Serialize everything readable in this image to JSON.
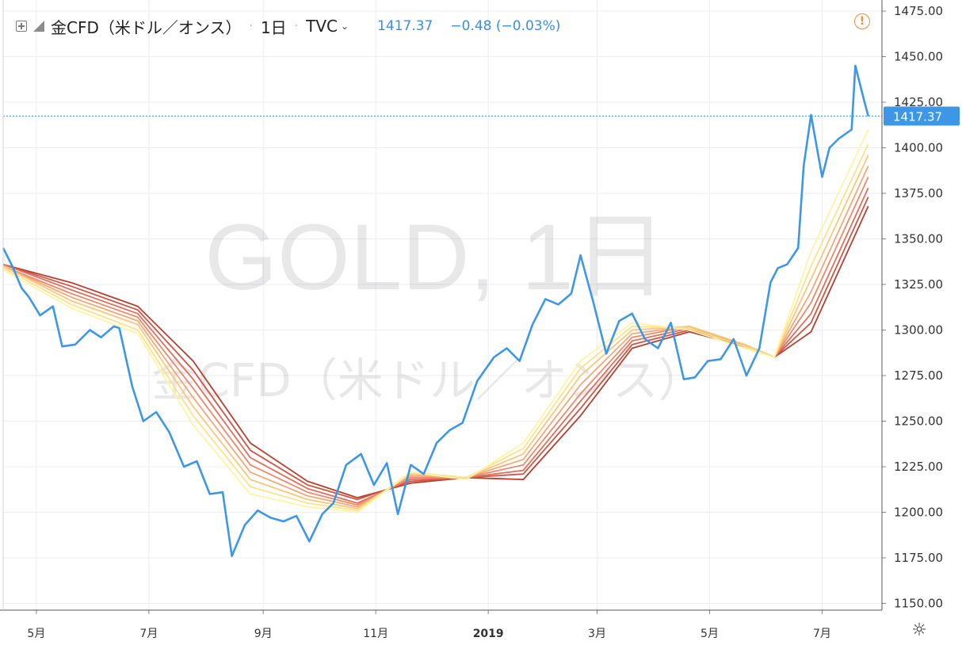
{
  "header": {
    "symbol_name": "金CFD（米ドル／オンス）",
    "interval": "1日",
    "source": "TVC",
    "last_price": "1417.37",
    "change": "−0.48 (−0.03%)"
  },
  "watermark": {
    "line1": "GOLD, 1日",
    "line2": "金CFD（米ドル／オンス）"
  },
  "icons": {
    "expand": "expand-square-icon",
    "symbol": "symbol-square-icon",
    "chevron": "chevron-down-icon",
    "warning": "warning-circle-icon",
    "settings": "gear-icon"
  },
  "colors": {
    "price_line": "#3e97e6",
    "price_label_bg": "#3e97e6",
    "ribbon": [
      "#fff3a6",
      "#fce28a",
      "#f8c77a",
      "#f3a878",
      "#ec8a6c",
      "#e06f5b",
      "#cf5647",
      "#b5402f"
    ]
  },
  "chart_data": {
    "type": "line",
    "title": "",
    "ylim": [
      1150,
      1475
    ],
    "xlim": [
      "2018-04-13",
      "2019-07-27"
    ],
    "y_ticks": [
      "1475.00",
      "1450.00",
      "1425.00",
      "1400.00",
      "1375.00",
      "1350.00",
      "1325.00",
      "1300.00",
      "1275.00",
      "1250.00",
      "1225.00",
      "1200.00",
      "1175.00",
      "1150.00"
    ],
    "x_ticks": [
      {
        "label": "5月",
        "x": "2018-05-01"
      },
      {
        "label": "7月",
        "x": "2018-07-01"
      },
      {
        "label": "9月",
        "x": "2018-09-01"
      },
      {
        "label": "11月",
        "x": "2018-11-01"
      },
      {
        "label": "2019",
        "x": "2019-01-01",
        "bold": true
      },
      {
        "label": "3月",
        "x": "2019-03-01"
      },
      {
        "label": "5月",
        "x": "2019-05-01"
      },
      {
        "label": "7月",
        "x": "2019-07-01"
      }
    ],
    "current_price": {
      "value": 1417.37,
      "label": "1417.37"
    },
    "price_series": {
      "name": "金CFD（米ドル／オンス）",
      "x": [
        "2018-04-13",
        "2018-04-18",
        "2018-04-23",
        "2018-04-27",
        "2018-05-03",
        "2018-05-10",
        "2018-05-15",
        "2018-05-22",
        "2018-05-30",
        "2018-06-05",
        "2018-06-12",
        "2018-06-15",
        "2018-06-22",
        "2018-06-28",
        "2018-07-05",
        "2018-07-12",
        "2018-07-20",
        "2018-07-27",
        "2018-08-03",
        "2018-08-10",
        "2018-08-15",
        "2018-08-22",
        "2018-08-29",
        "2018-09-05",
        "2018-09-12",
        "2018-09-19",
        "2018-09-26",
        "2018-10-03",
        "2018-10-09",
        "2018-10-16",
        "2018-10-24",
        "2018-10-31",
        "2018-11-07",
        "2018-11-13",
        "2018-11-20",
        "2018-11-27",
        "2018-12-04",
        "2018-12-11",
        "2018-12-18",
        "2018-12-26",
        "2019-01-04",
        "2019-01-11",
        "2019-01-18",
        "2019-01-25",
        "2019-02-01",
        "2019-02-08",
        "2019-02-15",
        "2019-02-20",
        "2019-02-27",
        "2019-03-06",
        "2019-03-13",
        "2019-03-20",
        "2019-03-27",
        "2019-04-03",
        "2019-04-10",
        "2019-04-17",
        "2019-04-23",
        "2019-04-30",
        "2019-05-07",
        "2019-05-14",
        "2019-05-21",
        "2019-05-28",
        "2019-06-03",
        "2019-06-07",
        "2019-06-12",
        "2019-06-18",
        "2019-06-21",
        "2019-06-25",
        "2019-07-01",
        "2019-07-05",
        "2019-07-10",
        "2019-07-17",
        "2019-07-19",
        "2019-07-24",
        "2019-07-26"
      ],
      "y": [
        1345,
        1335,
        1323,
        1318,
        1308,
        1313,
        1291,
        1292,
        1300,
        1296,
        1302,
        1301,
        1269,
        1250,
        1255,
        1244,
        1225,
        1228,
        1210,
        1211,
        1176,
        1193,
        1201,
        1197,
        1195,
        1198,
        1184,
        1199,
        1205,
        1226,
        1232,
        1215,
        1227,
        1199,
        1226,
        1221,
        1238,
        1245,
        1249,
        1272,
        1285,
        1290,
        1283,
        1303,
        1317,
        1314,
        1320,
        1341,
        1315,
        1287,
        1305,
        1309,
        1295,
        1290,
        1304,
        1273,
        1274,
        1283,
        1284,
        1295,
        1275,
        1290,
        1326,
        1334,
        1336,
        1345,
        1390,
        1418,
        1384,
        1400,
        1405,
        1410,
        1445,
        1425,
        1417.37
      ]
    },
    "ribbon_series": [
      {
        "x": [
          "2018-04-13",
          "2018-05-20",
          "2018-06-25",
          "2018-07-25",
          "2018-08-25",
          "2018-09-25",
          "2018-10-22",
          "2018-11-20",
          "2018-12-20",
          "2019-01-20",
          "2019-02-20",
          "2019-03-20",
          "2019-04-20",
          "2019-05-20",
          "2019-06-05",
          "2019-06-25",
          "2019-07-26"
        ],
        "y": [
          1333,
          1312,
          1298,
          1248,
          1210,
          1203,
          1200,
          1222,
          1218,
          1238,
          1283,
          1304,
          1300,
          1290,
          1285,
          1343,
          1410
        ]
      },
      {
        "x": [
          "2018-04-13",
          "2018-05-20",
          "2018-06-25",
          "2018-07-25",
          "2018-08-25",
          "2018-09-25",
          "2018-10-22",
          "2018-11-20",
          "2018-12-20",
          "2019-01-20",
          "2019-02-20",
          "2019-03-20",
          "2019-04-20",
          "2019-05-20",
          "2019-06-05",
          "2019-06-25",
          "2019-07-26"
        ],
        "y": [
          1334,
          1314,
          1300,
          1253,
          1214,
          1205,
          1201,
          1222,
          1219,
          1235,
          1279,
          1302,
          1301,
          1291,
          1285,
          1335,
          1402
        ]
      },
      {
        "x": [
          "2018-04-13",
          "2018-05-20",
          "2018-06-25",
          "2018-07-25",
          "2018-08-25",
          "2018-09-25",
          "2018-10-22",
          "2018-11-20",
          "2018-12-20",
          "2019-01-20",
          "2019-02-20",
          "2019-03-20",
          "2019-04-20",
          "2019-05-20",
          "2019-06-05",
          "2019-06-25",
          "2019-07-26"
        ],
        "y": [
          1335,
          1316,
          1303,
          1258,
          1218,
          1207,
          1202,
          1221,
          1219,
          1232,
          1275,
          1300,
          1302,
          1292,
          1285,
          1328,
          1396
        ]
      },
      {
        "x": [
          "2018-04-13",
          "2018-05-20",
          "2018-06-25",
          "2018-07-25",
          "2018-08-25",
          "2018-09-25",
          "2018-10-22",
          "2018-11-20",
          "2018-12-20",
          "2019-01-20",
          "2019-02-20",
          "2019-03-20",
          "2019-04-20",
          "2019-05-20",
          "2019-06-05",
          "2019-06-25",
          "2019-07-26"
        ],
        "y": [
          1335,
          1318,
          1305,
          1263,
          1222,
          1209,
          1203,
          1220,
          1219,
          1229,
          1270,
          1298,
          1302,
          1292,
          1285,
          1321,
          1390
        ]
      },
      {
        "x": [
          "2018-04-13",
          "2018-05-20",
          "2018-06-25",
          "2018-07-25",
          "2018-08-25",
          "2018-09-25",
          "2018-10-22",
          "2018-11-20",
          "2018-12-20",
          "2019-01-20",
          "2019-02-20",
          "2019-03-20",
          "2019-04-20",
          "2019-05-20",
          "2019-06-05",
          "2019-06-25",
          "2019-07-26"
        ],
        "y": [
          1335,
          1320,
          1307,
          1268,
          1226,
          1211,
          1204,
          1219,
          1219,
          1226,
          1265,
          1296,
          1302,
          1292,
          1285,
          1315,
          1384
        ]
      },
      {
        "x": [
          "2018-04-13",
          "2018-05-20",
          "2018-06-25",
          "2018-07-25",
          "2018-08-25",
          "2018-09-25",
          "2018-10-22",
          "2018-11-20",
          "2018-12-20",
          "2019-01-20",
          "2019-02-20",
          "2019-03-20",
          "2019-04-20",
          "2019-05-20",
          "2019-06-05",
          "2019-06-25",
          "2019-07-26"
        ],
        "y": [
          1336,
          1322,
          1309,
          1273,
          1230,
          1213,
          1205,
          1218,
          1219,
          1223,
          1261,
          1294,
          1301,
          1292,
          1285,
          1309,
          1378
        ]
      },
      {
        "x": [
          "2018-04-13",
          "2018-05-20",
          "2018-06-25",
          "2018-07-25",
          "2018-08-25",
          "2018-09-25",
          "2018-10-22",
          "2018-11-20",
          "2018-12-20",
          "2019-01-20",
          "2019-02-20",
          "2019-03-20",
          "2019-04-20",
          "2019-05-20",
          "2019-06-05",
          "2019-06-25",
          "2019-07-26"
        ],
        "y": [
          1336,
          1324,
          1311,
          1278,
          1234,
          1215,
          1207,
          1217,
          1219,
          1221,
          1257,
          1292,
          1300,
          1292,
          1285,
          1304,
          1373
        ]
      },
      {
        "x": [
          "2018-04-13",
          "2018-05-20",
          "2018-06-25",
          "2018-07-25",
          "2018-08-25",
          "2018-09-25",
          "2018-10-22",
          "2018-11-20",
          "2018-12-20",
          "2019-01-20",
          "2019-02-20",
          "2019-03-20",
          "2019-04-20",
          "2019-05-20",
          "2019-06-05",
          "2019-06-25",
          "2019-07-26"
        ],
        "y": [
          1336,
          1326,
          1313,
          1283,
          1238,
          1217,
          1208,
          1216,
          1219,
          1218,
          1253,
          1290,
          1299,
          1291,
          1285,
          1299,
          1368
        ]
      }
    ],
    "grid": true
  }
}
